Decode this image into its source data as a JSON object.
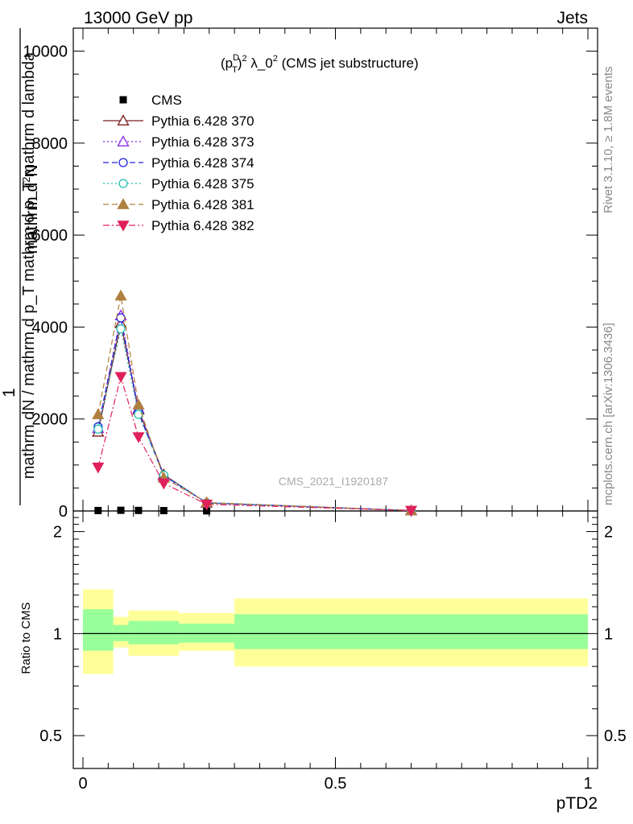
{
  "header": {
    "left": "13000 GeV pp",
    "right": "Jets"
  },
  "side_labels": {
    "right_top": "Rivet 3.1.10, ≥ 1.8M events",
    "right_bottom": "mcplots.cern.ch [arXiv:1306.3436]"
  },
  "watermark": "CMS_2021_I1920187",
  "colors": {
    "CMS": "#000000",
    "p370": "#7b1c1c",
    "p373": "#8a2be2",
    "p374": "#2020e0",
    "p375": "#20c0b0",
    "p381": "#b08040",
    "p382": "#e0205a",
    "band_inner": "#99ff99",
    "band_outer": "#ffff99"
  },
  "chart_data": [
    {
      "type": "line",
      "title": "(p_T^D)^2 λ_0^2 (CMS jet substructure)",
      "title_parts": {
        "p": "(p",
        "sup1": "D",
        "sub1": "T",
        "close": ")",
        "sup2": "2",
        "lambda": " λ_0",
        "sup3": "2",
        "rest": " (CMS jet substructure)"
      },
      "ylabel_line1": "1",
      "ylabel_line2a": "mathrm d",
      "ylabel_line2b": "N",
      "ylabel_line3": "mathrm dN / mathrm d p_T mathrm d p_T mathrm d lambda",
      "ylabel_frac_line1": "mathrm d",
      "ylabel_frac_sup": "2",
      "ylabel_frac_n": "N",
      "ylabel_bottom": "mathrm d p_T mathrm d lambda",
      "xlim": [
        0,
        1
      ],
      "ylim": [
        0,
        10500
      ],
      "y_ticks": [
        0,
        2000,
        4000,
        6000,
        8000,
        10000
      ],
      "y_tick_labels": [
        "0",
        "2000",
        "4000",
        "6000",
        "8000",
        "10000"
      ],
      "legend_position": "top-left",
      "series": [
        {
          "name": "CMS",
          "key": "CMS",
          "marker": "square",
          "line": "none",
          "x": [
            0.03,
            0.075,
            0.11,
            0.16,
            0.245,
            0.65
          ],
          "y": [
            10,
            15,
            12,
            8,
            3,
            0.5
          ]
        },
        {
          "name": "Pythia 6.428 370",
          "key": "p370",
          "marker": "triangle-open",
          "line": "solid",
          "x": [
            0.03,
            0.075,
            0.11,
            0.16,
            0.245,
            0.65
          ],
          "y": [
            1720,
            4080,
            2200,
            790,
            175,
            10
          ]
        },
        {
          "name": "Pythia 6.428 373",
          "key": "p373",
          "marker": "triangle-open",
          "line": "dotted",
          "x": [
            0.03,
            0.075,
            0.11,
            0.16,
            0.245,
            0.65
          ],
          "y": [
            1800,
            4250,
            2230,
            760,
            178,
            10
          ]
        },
        {
          "name": "Pythia 6.428 374",
          "key": "p374",
          "marker": "circle-open",
          "line": "dashed",
          "x": [
            0.03,
            0.075,
            0.11,
            0.16,
            0.245,
            0.65
          ],
          "y": [
            1830,
            4200,
            2140,
            770,
            176,
            10
          ]
        },
        {
          "name": "Pythia 6.428 375",
          "key": "p375",
          "marker": "circle-open",
          "line": "dotted",
          "x": [
            0.03,
            0.075,
            0.11,
            0.16,
            0.245,
            0.65
          ],
          "y": [
            1780,
            3960,
            2100,
            780,
            178,
            10
          ]
        },
        {
          "name": "Pythia 6.428 381",
          "key": "p381",
          "marker": "triangle-filled",
          "line": "dashed",
          "x": [
            0.03,
            0.075,
            0.11,
            0.16,
            0.245,
            0.65
          ],
          "y": [
            2100,
            4680,
            2310,
            720,
            185,
            10
          ]
        },
        {
          "name": "Pythia 6.428 382",
          "key": "p382",
          "marker": "triangle-down-filled",
          "line": "dashdot",
          "x": [
            0.03,
            0.075,
            0.11,
            0.16,
            0.245,
            0.65
          ],
          "y": [
            950,
            2920,
            1610,
            600,
            145,
            10
          ]
        }
      ]
    },
    {
      "type": "area",
      "ylabel": "Ratio to CMS",
      "xlabel": "pTD2",
      "xlim": [
        0,
        1
      ],
      "ylim": [
        0.4,
        2.3
      ],
      "log_y": true,
      "y_ticks": [
        0.5,
        1,
        2
      ],
      "y_tick_labels": [
        "0.5",
        "1",
        "2"
      ],
      "x_ticks": [
        0,
        0.5,
        1
      ],
      "x_tick_labels": [
        "0",
        "0.5",
        "1"
      ],
      "bins": [
        {
          "x_lo": 0.0,
          "x_hi": 0.06,
          "inner": [
            0.89,
            1.18
          ],
          "outer": [
            0.76,
            1.35
          ]
        },
        {
          "x_lo": 0.06,
          "x_hi": 0.09,
          "inner": [
            0.95,
            1.06
          ],
          "outer": [
            0.91,
            1.12
          ]
        },
        {
          "x_lo": 0.09,
          "x_hi": 0.13,
          "inner": [
            0.93,
            1.09
          ],
          "outer": [
            0.86,
            1.17
          ]
        },
        {
          "x_lo": 0.13,
          "x_hi": 0.19,
          "inner": [
            0.93,
            1.09
          ],
          "outer": [
            0.86,
            1.17
          ]
        },
        {
          "x_lo": 0.19,
          "x_hi": 0.3,
          "inner": [
            0.94,
            1.07
          ],
          "outer": [
            0.89,
            1.15
          ]
        },
        {
          "x_lo": 0.3,
          "x_hi": 1.0,
          "inner": [
            0.9,
            1.14
          ],
          "outer": [
            0.8,
            1.27
          ]
        }
      ],
      "reference": 1
    }
  ]
}
